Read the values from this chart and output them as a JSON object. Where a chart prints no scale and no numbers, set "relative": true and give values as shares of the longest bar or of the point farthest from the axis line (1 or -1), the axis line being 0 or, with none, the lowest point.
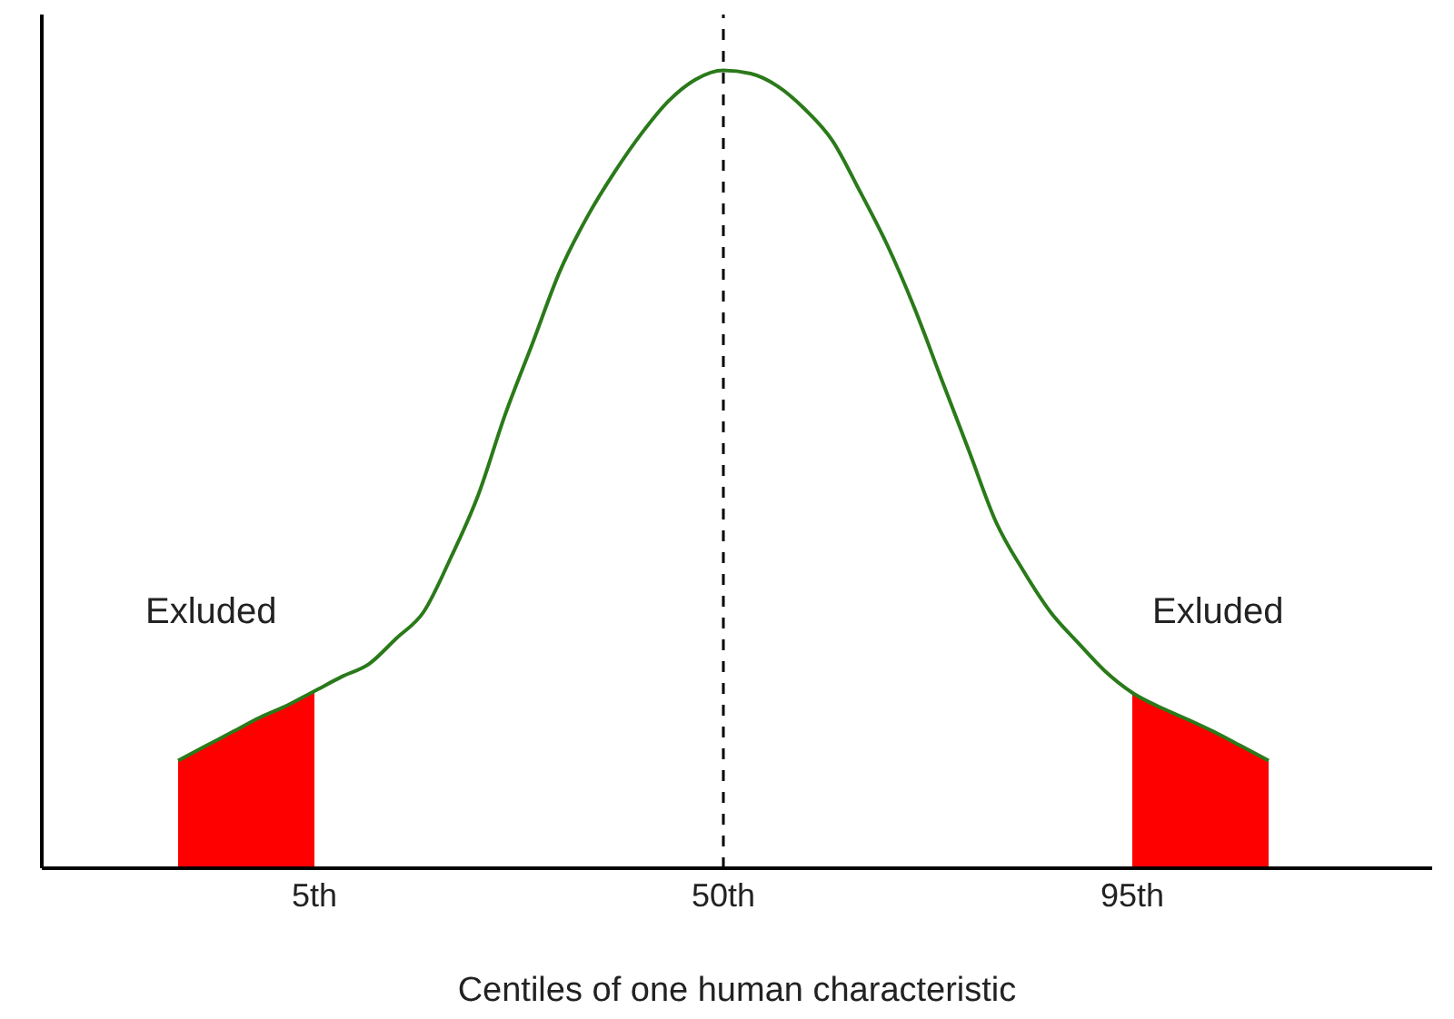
{
  "chart_data": {
    "type": "line",
    "relative": true,
    "xlabel": "Centiles of one human characteristic",
    "categories": [
      null,
      null,
      null,
      null,
      null,
      null,
      null,
      null,
      null,
      null,
      "5th",
      null,
      null,
      null,
      null,
      null,
      null,
      null,
      null,
      null,
      null,
      null,
      null,
      null,
      null,
      "50th",
      null,
      null,
      null,
      null,
      null,
      null,
      null,
      null,
      null,
      null,
      null,
      null,
      null,
      null,
      "95th",
      null,
      null,
      null,
      null,
      null,
      null,
      null,
      null,
      null,
      null,
      null
    ],
    "series": [
      {
        "type": "area",
        "color": "#ff0000",
        "values": [
          null,
          null,
          null,
          null,
          null,
          0.135,
          0.153,
          0.171,
          0.189,
          0.204,
          0.222,
          null,
          null,
          null,
          null,
          null,
          null,
          null,
          null,
          null,
          null,
          null,
          null,
          null,
          null,
          null,
          null,
          null,
          null,
          null,
          null,
          null,
          null,
          null,
          null,
          null,
          null,
          null,
          null,
          null,
          0.22,
          0.202,
          0.187,
          0.171,
          0.153,
          0.135,
          null,
          null,
          null,
          null,
          null,
          null
        ]
      },
      {
        "color": "#2a7a1a",
        "values": [
          null,
          null,
          null,
          null,
          null,
          0.135,
          0.153,
          0.171,
          0.189,
          0.204,
          0.222,
          0.24,
          0.256,
          0.288,
          0.321,
          0.389,
          0.467,
          0.569,
          0.658,
          0.748,
          0.816,
          0.872,
          0.921,
          0.962,
          0.989,
          1,
          0.996,
          0.98,
          0.951,
          0.912,
          0.849,
          0.782,
          0.703,
          0.613,
          0.524,
          0.434,
          0.373,
          0.321,
          0.283,
          0.247,
          0.22,
          0.202,
          0.187,
          0.171,
          0.153,
          0.135,
          null,
          null,
          null,
          null,
          null,
          null
        ]
      }
    ],
    "ref_lines": [
      {
        "axis": "x",
        "value": "50th",
        "color": "#000000",
        "line_style": "dashed"
      }
    ],
    "annotations": [
      "Exluded",
      "Exluded"
    ],
    "marker": "none"
  }
}
